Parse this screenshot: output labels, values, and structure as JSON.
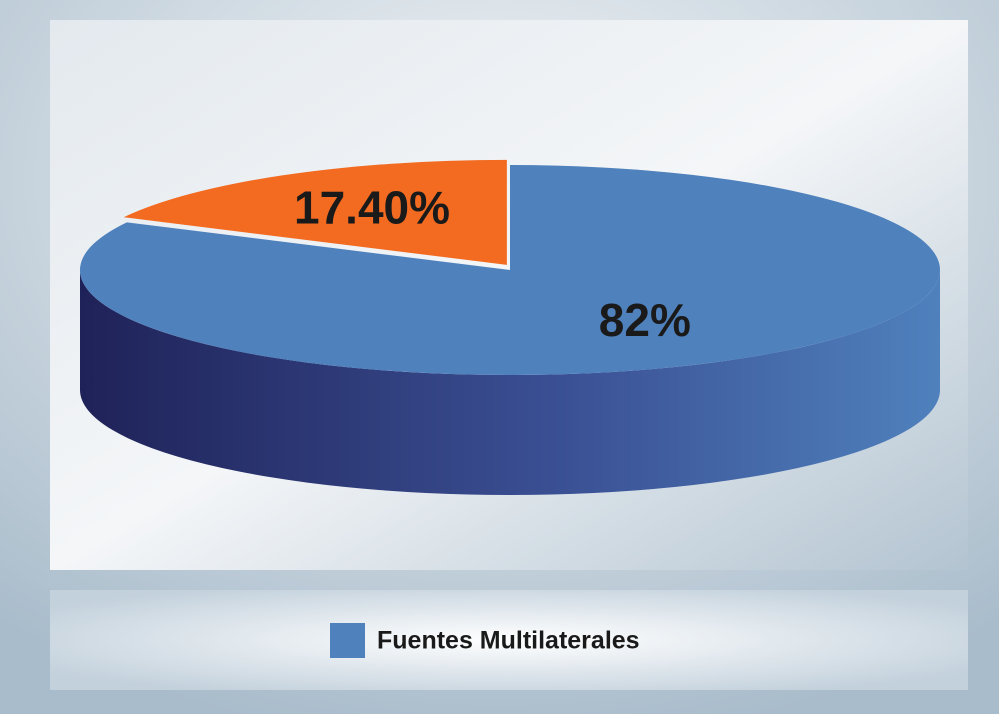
{
  "chart_data": {
    "type": "pie",
    "categories": [
      "Fuentes Multilaterales",
      null
    ],
    "values": [
      82,
      17.4
    ],
    "value_labels": [
      "82%",
      "17.40%"
    ],
    "colors": [
      "#4f81bd",
      "#f26b21"
    ],
    "legend": "bottom"
  }
}
